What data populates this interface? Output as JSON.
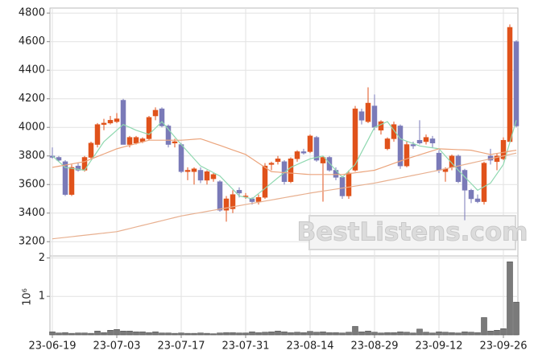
{
  "chart_data": [
    {
      "type": "candlestick",
      "categories": [
        "23-06-19",
        null,
        null,
        null,
        null,
        null,
        null,
        null,
        null,
        null,
        "23-07-03",
        null,
        null,
        null,
        null,
        null,
        null,
        null,
        null,
        null,
        "23-07-17",
        null,
        null,
        null,
        null,
        null,
        null,
        null,
        null,
        null,
        "23-07-31",
        null,
        null,
        null,
        null,
        null,
        null,
        null,
        null,
        null,
        "23-08-14",
        null,
        null,
        null,
        null,
        null,
        null,
        null,
        null,
        null,
        "23-08-29",
        null,
        null,
        null,
        null,
        null,
        null,
        null,
        null,
        null,
        "23-09-12",
        null,
        null,
        null,
        null,
        null,
        null,
        null,
        null,
        null,
        "23-09-26",
        null,
        null
      ],
      "open": [
        3800,
        3790,
        3760,
        3530,
        3730,
        3700,
        3790,
        3880,
        4020,
        4030,
        4040,
        4190,
        3880,
        3890,
        3900,
        3920,
        4080,
        4130,
        4010,
        3890,
        3880,
        3690,
        3690,
        3700,
        3630,
        3640,
        3620,
        3420,
        3430,
        3560,
        3520,
        3500,
        3480,
        3510,
        3740,
        3760,
        3760,
        3620,
        3780,
        3830,
        3830,
        3930,
        3750,
        3790,
        3700,
        3650,
        3520,
        3700,
        4110,
        4040,
        4150,
        3980,
        3850,
        3920,
        4010,
        3730,
        3880,
        3910,
        3900,
        3920,
        3820,
        3690,
        3720,
        3800,
        3700,
        3560,
        3500,
        3480,
        3800,
        3760,
        3780,
        3900,
        4600
      ],
      "high": [
        3860,
        3800,
        3770,
        3740,
        3750,
        3800,
        3900,
        4030,
        4060,
        4080,
        4100,
        4200,
        3940,
        3940,
        3930,
        4080,
        4140,
        4140,
        4020,
        3920,
        3890,
        3720,
        3720,
        3720,
        3700,
        3680,
        3630,
        3520,
        3560,
        3580,
        3540,
        3510,
        3530,
        3750,
        3760,
        3800,
        3770,
        3790,
        3840,
        3850,
        3950,
        3940,
        3800,
        3800,
        3720,
        3660,
        3700,
        4150,
        4130,
        4280,
        4230,
        4050,
        3930,
        4040,
        4020,
        3900,
        3900,
        4050,
        3950,
        3940,
        3840,
        3720,
        3810,
        3810,
        3710,
        3570,
        3530,
        3760,
        3850,
        3820,
        3930,
        4720,
        4610
      ],
      "low": [
        3780,
        3760,
        3520,
        3520,
        3690,
        3690,
        3780,
        3860,
        3980,
        4020,
        4030,
        3880,
        3860,
        3880,
        3890,
        3910,
        4050,
        4000,
        3860,
        3860,
        3680,
        3630,
        3600,
        3610,
        3600,
        3620,
        3410,
        3340,
        3400,
        3510,
        3500,
        3460,
        3460,
        3500,
        3700,
        3740,
        3600,
        3610,
        3760,
        3810,
        3820,
        3760,
        3480,
        3690,
        3630,
        3500,
        3500,
        3690,
        4020,
        4030,
        3980,
        3950,
        3840,
        3900,
        3710,
        3720,
        3850,
        3880,
        3880,
        3860,
        3680,
        3620,
        3700,
        3610,
        3350,
        3470,
        3470,
        3460,
        3740,
        3700,
        3770,
        3890,
        4000
      ],
      "close": [
        3790,
        3770,
        3530,
        3720,
        3700,
        3790,
        3890,
        4020,
        4030,
        4050,
        4060,
        3880,
        3930,
        3930,
        3920,
        4070,
        4120,
        4010,
        3880,
        3900,
        3690,
        3700,
        3710,
        3630,
        3690,
        3670,
        3420,
        3500,
        3530,
        3540,
        3520,
        3480,
        3510,
        3730,
        3750,
        3780,
        3620,
        3780,
        3830,
        3820,
        3940,
        3770,
        3790,
        3700,
        3650,
        3520,
        3680,
        4130,
        4050,
        4170,
        4000,
        4040,
        3920,
        4020,
        3730,
        3880,
        3870,
        3890,
        3930,
        3890,
        3700,
        3710,
        3800,
        3620,
        3560,
        3500,
        3480,
        3750,
        3770,
        3800,
        3910,
        4700,
        4010
      ],
      "up_color": "#e0521b",
      "down_color": "#7a7ab8",
      "series": [
        {
          "color": "#8fd8b0",
          "values": [
            3800,
            3760,
            3720,
            3713,
            3707,
            3700,
            3767,
            3833,
            3900,
            3940,
            3980,
            4020,
            4000,
            3980,
            3965,
            3950,
            3995,
            4040,
            3987,
            3933,
            3880,
            3830,
            3780,
            3730,
            3707,
            3683,
            3660,
            3613,
            3567,
            3520,
            3510,
            3500,
            3537,
            3573,
            3610,
            3647,
            3683,
            3720,
            3740,
            3760,
            3780,
            3790,
            3800,
            3750,
            3700,
            3650,
            3695,
            3740,
            3827,
            3913,
            4000,
            4020,
            4040,
            3980,
            3920,
            3903,
            3887,
            3870,
            3863,
            3857,
            3850,
            3800,
            3750,
            3700,
            3653,
            3607,
            3560,
            3585,
            3610,
            3675,
            3740,
            3895,
            4050
          ]
        },
        {
          "color": "#eba47c",
          "values": [
            3720,
            3728,
            3736,
            3744,
            3752,
            3760,
            3778,
            3796,
            3814,
            3832,
            3850,
            3862,
            3874,
            3886,
            3898,
            3910,
            3910,
            3910,
            3910,
            3910,
            3910,
            3913,
            3917,
            3920,
            3905,
            3889,
            3874,
            3858,
            3842,
            3826,
            3810,
            3780,
            3750,
            3720,
            3690,
            3687,
            3683,
            3680,
            3677,
            3673,
            3670,
            3670,
            3670,
            3670,
            3670,
            3670,
            3676,
            3682,
            3688,
            3694,
            3700,
            3716,
            3732,
            3748,
            3764,
            3780,
            3794,
            3808,
            3822,
            3836,
            3850,
            3848,
            3846,
            3844,
            3842,
            3840,
            3830,
            3820,
            3810,
            3818,
            3825,
            3833,
            3840
          ]
        },
        {
          "color": "#e8b090",
          "values": [
            3220,
            3225,
            3230,
            3235,
            3240,
            3245,
            3250,
            3255,
            3260,
            3265,
            3270,
            3281,
            3292,
            3303,
            3314,
            3325,
            3336,
            3347,
            3358,
            3369,
            3380,
            3388,
            3396,
            3404,
            3412,
            3420,
            3428,
            3436,
            3444,
            3452,
            3460,
            3468,
            3476,
            3484,
            3492,
            3500,
            3508,
            3516,
            3524,
            3532,
            3540,
            3547,
            3554,
            3561,
            3568,
            3575,
            3582,
            3589,
            3596,
            3603,
            3610,
            3619,
            3628,
            3637,
            3646,
            3655,
            3664,
            3673,
            3682,
            3691,
            3700,
            3710,
            3720,
            3730,
            3740,
            3750,
            3760,
            3770,
            3780,
            3790,
            3800,
            3810,
            3820
          ]
        }
      ],
      "ylim": [
        3100,
        4835
      ],
      "yticks": [
        3200,
        3400,
        3600,
        3800,
        4000,
        4200,
        4400,
        4600,
        4800
      ],
      "grid": true,
      "watermark": "BestListens.com"
    },
    {
      "type": "bar",
      "ylabel": "10⁶",
      "color": "#7a7a7a",
      "values": [
        0.08,
        0.05,
        0.06,
        0.04,
        0.05,
        0.05,
        0.04,
        0.1,
        0.06,
        0.12,
        0.14,
        0.1,
        0.1,
        0.08,
        0.08,
        0.06,
        0.08,
        0.05,
        0.05,
        0.04,
        0.05,
        0.04,
        0.04,
        0.05,
        0.04,
        0.03,
        0.05,
        0.06,
        0.06,
        0.05,
        0.05,
        0.08,
        0.06,
        0.07,
        0.08,
        0.1,
        0.08,
        0.06,
        0.07,
        0.06,
        0.09,
        0.07,
        0.08,
        0.06,
        0.06,
        0.05,
        0.07,
        0.22,
        0.08,
        0.1,
        0.07,
        0.05,
        0.06,
        0.06,
        0.08,
        0.07,
        0.05,
        0.15,
        0.07,
        0.05,
        0.08,
        0.07,
        0.06,
        0.05,
        0.08,
        0.07,
        0.06,
        0.45,
        0.1,
        0.12,
        0.16,
        1.9,
        0.85
      ],
      "ylim": [
        0,
        2.05
      ],
      "yticks": [
        1,
        2
      ],
      "grid": true
    }
  ]
}
